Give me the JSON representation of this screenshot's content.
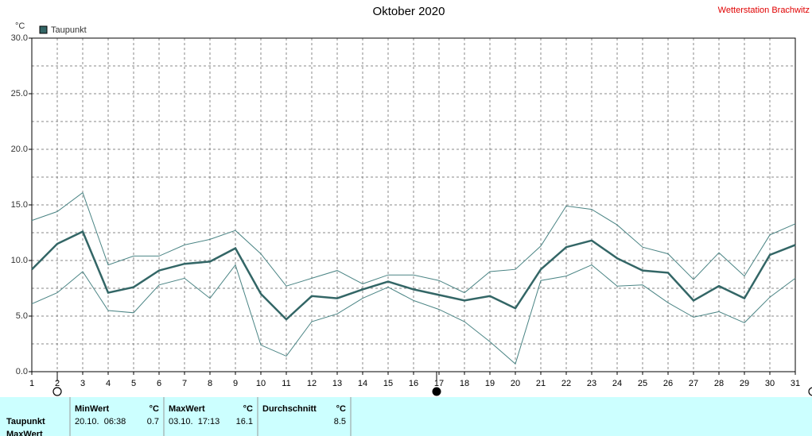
{
  "chart_data": {
    "type": "line",
    "title": "Oktober 2020",
    "station": "Wetterstation Brachwitz",
    "y_unit": "°C",
    "x": [
      1,
      2,
      3,
      4,
      5,
      6,
      7,
      8,
      9,
      10,
      11,
      12,
      13,
      14,
      15,
      16,
      17,
      18,
      19,
      20,
      21,
      22,
      23,
      24,
      25,
      26,
      27,
      28,
      29,
      30,
      31
    ],
    "xlim": [
      1,
      31
    ],
    "xticks": [
      1,
      2,
      3,
      4,
      5,
      6,
      7,
      8,
      9,
      10,
      11,
      12,
      13,
      14,
      15,
      16,
      17,
      18,
      19,
      20,
      21,
      22,
      23,
      24,
      25,
      26,
      27,
      28,
      29,
      30,
      31
    ],
    "ylim": [
      0,
      30
    ],
    "yticks": [
      {
        "value": 0,
        "label": "0.0"
      },
      {
        "value": 5,
        "label": "5.0"
      },
      {
        "value": 10,
        "label": "10.0"
      },
      {
        "value": 15,
        "label": "15.0"
      },
      {
        "value": 20,
        "label": "20.0"
      },
      {
        "value": 25,
        "label": "25.0"
      },
      {
        "value": 30,
        "label": "30.0"
      }
    ],
    "ygrid_minor": [
      2.5,
      7.5,
      12.5,
      17.5,
      22.5,
      27.5
    ],
    "grid": true,
    "legend": "top-left",
    "series": [
      {
        "name": "Taupunkt",
        "color": "#336666",
        "values": [
          9.2,
          11.5,
          12.6,
          7.1,
          7.6,
          9.1,
          9.7,
          9.9,
          11.1,
          7.0,
          4.7,
          6.8,
          6.6,
          7.4,
          8.1,
          7.4,
          6.9,
          6.4,
          6.8,
          5.7,
          9.2,
          11.2,
          11.8,
          10.2,
          9.1,
          8.9,
          6.4,
          7.7,
          6.6,
          10.5,
          11.4
        ]
      },
      {
        "color": "#4a8484",
        "values": [
          13.6,
          14.4,
          16.1,
          9.6,
          10.4,
          10.4,
          11.4,
          11.9,
          12.7,
          10.6,
          7.7,
          8.4,
          9.1,
          7.9,
          8.7,
          8.7,
          8.2,
          7.1,
          9.0,
          9.2,
          11.3,
          14.9,
          14.6,
          13.2,
          11.2,
          10.6,
          8.3,
          10.7,
          8.6,
          12.3,
          13.3
        ]
      },
      {
        "color": "#4a8484",
        "values": [
          6.1,
          7.1,
          9.0,
          5.5,
          5.3,
          7.8,
          8.4,
          6.6,
          9.6,
          2.4,
          1.4,
          4.5,
          5.2,
          6.6,
          7.6,
          6.4,
          5.6,
          4.5,
          2.7,
          0.7,
          8.2,
          8.6,
          9.6,
          7.7,
          7.8,
          6.2,
          4.9,
          5.4,
          4.4,
          6.7,
          8.4
        ]
      }
    ]
  },
  "table": {
    "row_labels": [
      "Taupunkt",
      "MaxWert"
    ],
    "columns": [
      {
        "header": "MinWert",
        "unit": "°C",
        "date": "20.10.  06:38",
        "value": 0.7
      },
      {
        "header": "MaxWert",
        "unit": "°C",
        "date": "03.10.  17:13",
        "value": 16.1
      },
      {
        "header": "Durchschnitt",
        "unit": "°C",
        "value": 8.5
      }
    ]
  }
}
